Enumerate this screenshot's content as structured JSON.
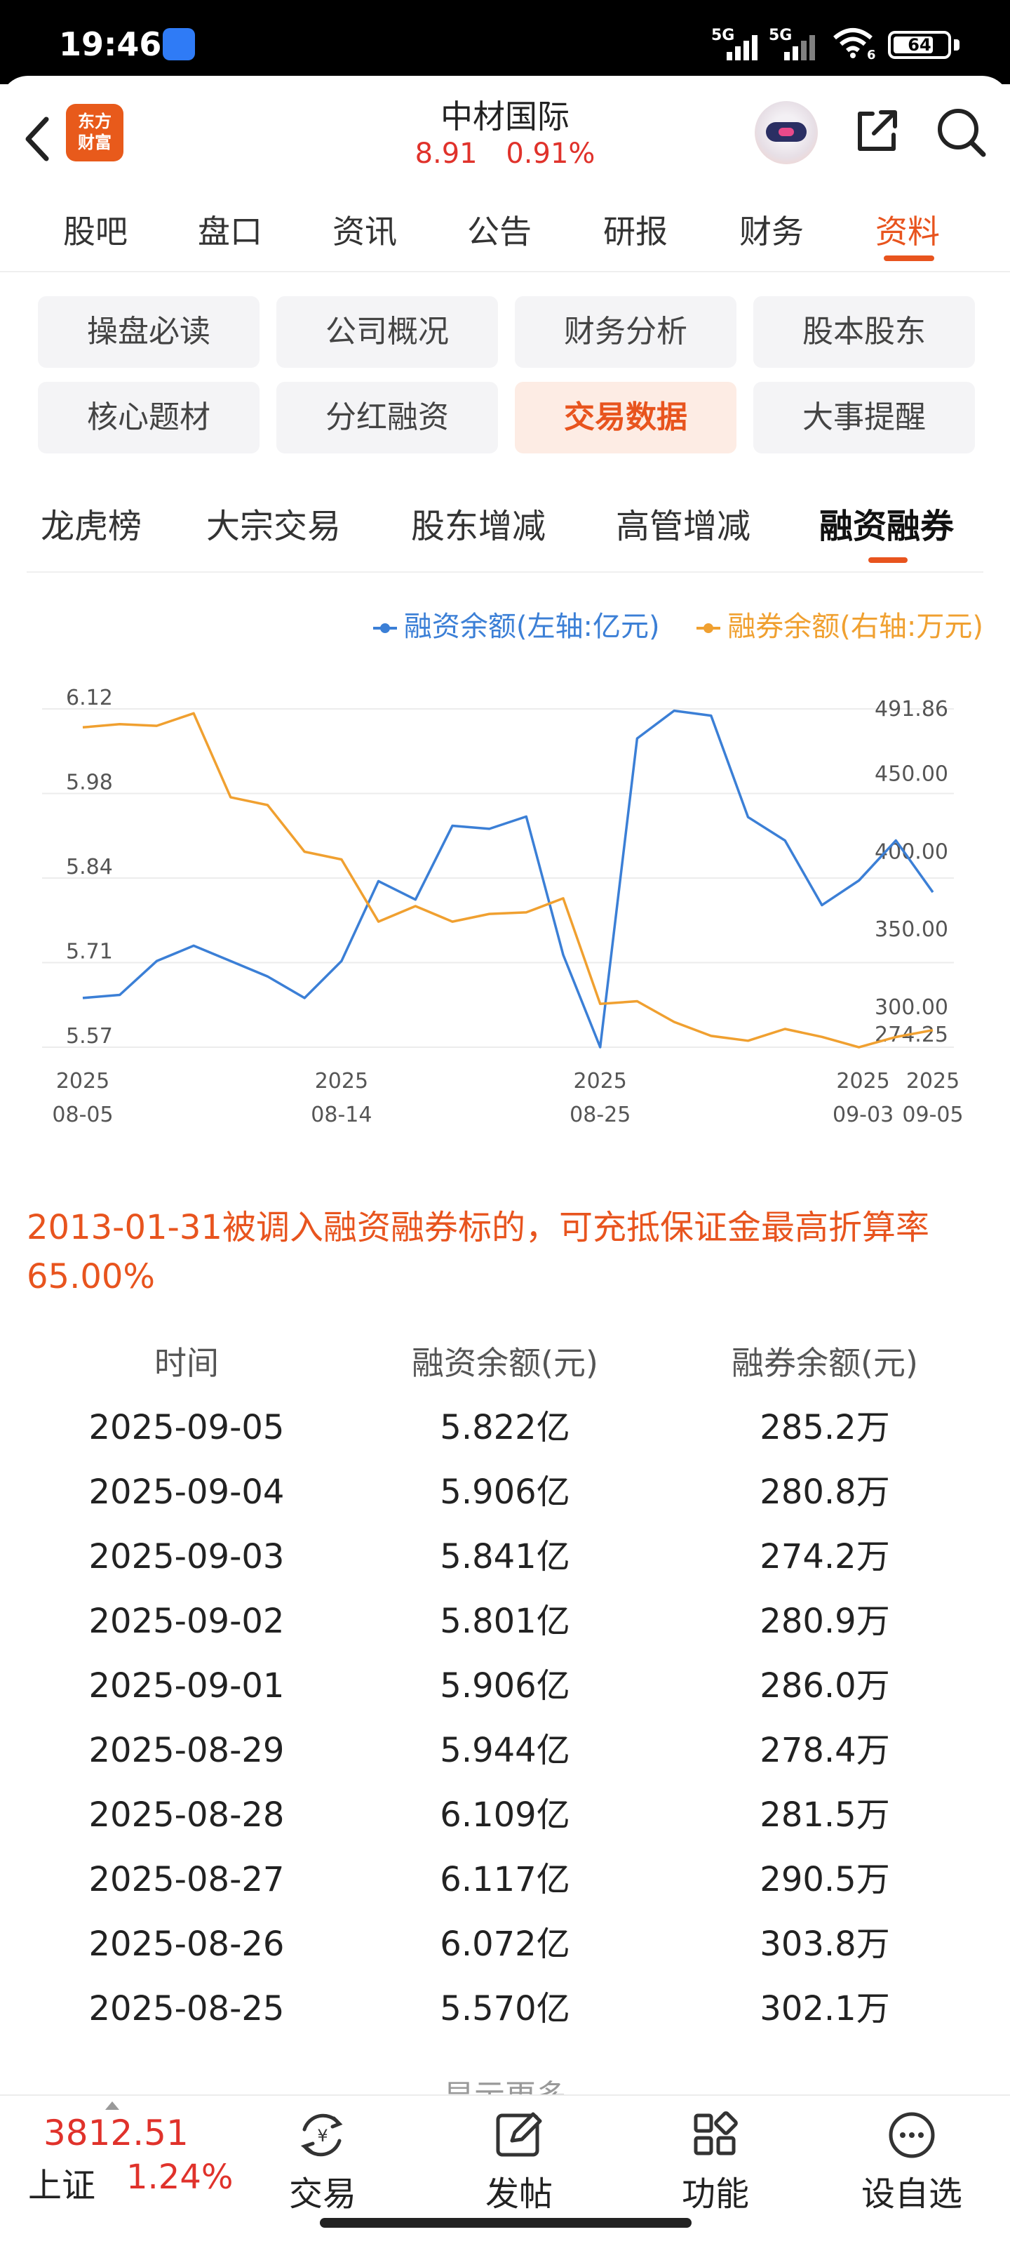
{
  "status_bar": {
    "time": "19:46",
    "net1": "5G",
    "net2": "5G",
    "wifi_sub": "6",
    "battery": "64"
  },
  "header": {
    "logo_text_1": "东方",
    "logo_text_2": "财富",
    "stock_name": "中材国际",
    "price": "8.91",
    "change_pct": "0.91%"
  },
  "main_tabs": [
    "股吧",
    "盘口",
    "资讯",
    "公告",
    "研报",
    "财务",
    "资料"
  ],
  "sub_buttons": [
    "操盘必读",
    "公司概况",
    "财务分析",
    "股本股东",
    "核心题材",
    "分红融资",
    "交易数据",
    "大事提醒"
  ],
  "sub_tabs": [
    "龙虎榜",
    "大宗交易",
    "股东增减",
    "高管增减",
    "融资融券"
  ],
  "chart_data": {
    "type": "line",
    "legend": [
      "融资余额(左轴:亿元)",
      "融券余额(右轴:万元)"
    ],
    "colors": {
      "financing": "#3b7fd6",
      "securities": "#f0a030"
    },
    "left_axis_ticks": [
      "6.12",
      "5.98",
      "5.84",
      "5.71",
      "5.57"
    ],
    "left_ylim": [
      5.57,
      6.12
    ],
    "right_axis_ticks": [
      "491.86",
      "450.00",
      "400.00",
      "350.00",
      "300.00",
      "274.25"
    ],
    "right_ylim": [
      274.25,
      491.86
    ],
    "x_tick_labels": [
      {
        "year": "2025",
        "date": "08-05"
      },
      {
        "year": "2025",
        "date": "08-14"
      },
      {
        "year": "2025",
        "date": "08-25"
      },
      {
        "year": "2025",
        "date": "09-03"
      },
      {
        "year": "2025",
        "date": "09-05"
      }
    ],
    "x": [
      "2025-08-05",
      "2025-08-06",
      "2025-08-07",
      "2025-08-08",
      "2025-08-11",
      "2025-08-12",
      "2025-08-13",
      "2025-08-14",
      "2025-08-15",
      "2025-08-18",
      "2025-08-19",
      "2025-08-20",
      "2025-08-21",
      "2025-08-22",
      "2025-08-25",
      "2025-08-26",
      "2025-08-27",
      "2025-08-28",
      "2025-08-29",
      "2025-09-01",
      "2025-09-02",
      "2025-09-03",
      "2025-09-04",
      "2025-09-05"
    ],
    "series": [
      {
        "name": "融资余额(左轴:亿元)",
        "axis": "left",
        "values": [
          5.65,
          5.655,
          5.71,
          5.735,
          5.71,
          5.685,
          5.65,
          5.71,
          5.84,
          5.81,
          5.93,
          5.925,
          5.945,
          5.72,
          5.57,
          6.072,
          6.117,
          6.109,
          5.944,
          5.906,
          5.801,
          5.841,
          5.906,
          5.822
        ]
      },
      {
        "name": "融券余额(右轴:万元)",
        "axis": "right",
        "values": [
          480,
          482,
          481,
          489,
          435,
          430,
          400,
          395,
          355,
          365,
          355,
          360,
          361,
          370,
          302.1,
          303.8,
          290.5,
          281.5,
          278.4,
          286.0,
          280.9,
          274.2,
          280.8,
          285.2
        ]
      }
    ]
  },
  "notice": "2013-01-31被调入融资融券标的，可充抵保证金最高折算率65.00%",
  "table": {
    "headers": [
      "时间",
      "融资余额(元)",
      "融券余额(元)"
    ],
    "rows": [
      [
        "2025-09-05",
        "5.822亿",
        "285.2万"
      ],
      [
        "2025-09-04",
        "5.906亿",
        "280.8万"
      ],
      [
        "2025-09-03",
        "5.841亿",
        "274.2万"
      ],
      [
        "2025-09-02",
        "5.801亿",
        "280.9万"
      ],
      [
        "2025-09-01",
        "5.906亿",
        "286.0万"
      ],
      [
        "2025-08-29",
        "5.944亿",
        "278.4万"
      ],
      [
        "2025-08-28",
        "6.109亿",
        "281.5万"
      ],
      [
        "2025-08-27",
        "6.117亿",
        "290.5万"
      ],
      [
        "2025-08-26",
        "6.072亿",
        "303.8万"
      ],
      [
        "2025-08-25",
        "5.570亿",
        "302.1万"
      ]
    ]
  },
  "more_label": "显示更多",
  "bottom_bar": {
    "index_value": "3812.51",
    "index_name": "上证",
    "index_pct": "1.24%",
    "nav": [
      "交易",
      "发帖",
      "功能",
      "设自选"
    ]
  }
}
